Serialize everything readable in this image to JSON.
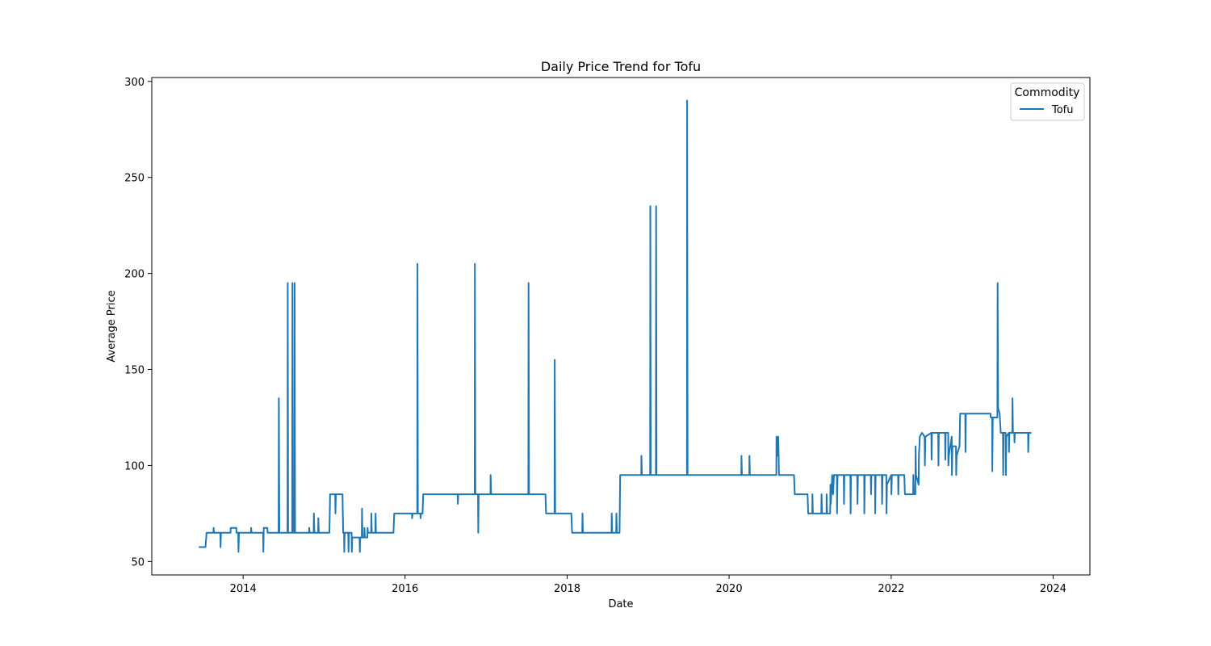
{
  "chart_data": {
    "type": "line",
    "title": "Daily Price Trend for Tofu",
    "xlabel": "Date",
    "ylabel": "Average Price",
    "x_ticks": [
      "2014",
      "2016",
      "2018",
      "2020",
      "2022",
      "2024"
    ],
    "y_ticks": [
      50,
      100,
      150,
      200,
      250,
      300
    ],
    "xlim": [
      "2012-11-15",
      "2024-06-15"
    ],
    "ylim": [
      43,
      302
    ],
    "grid": false,
    "legend": {
      "title": "Commodity",
      "placement": "top-right"
    },
    "series": [
      {
        "name": "Tofu",
        "color": "#1f77b4",
        "points": [
          [
            "2013-06-15",
            57.5
          ],
          [
            "2013-07-15",
            57.5
          ],
          [
            "2013-07-20",
            65
          ],
          [
            "2013-08-20",
            65
          ],
          [
            "2013-08-21",
            67.5
          ],
          [
            "2013-08-23",
            65
          ],
          [
            "2013-09-20",
            65
          ],
          [
            "2013-09-21",
            57.5
          ],
          [
            "2013-09-23",
            65
          ],
          [
            "2013-11-05",
            65
          ],
          [
            "2013-11-06",
            67.5
          ],
          [
            "2013-12-01",
            67.5
          ],
          [
            "2013-12-02",
            65
          ],
          [
            "2013-12-10",
            65
          ],
          [
            "2013-12-11",
            55
          ],
          [
            "2013-12-13",
            65
          ],
          [
            "2014-02-05",
            65
          ],
          [
            "2014-02-06",
            67.5
          ],
          [
            "2014-02-08",
            65
          ],
          [
            "2014-04-01",
            65
          ],
          [
            "2014-04-02",
            55
          ],
          [
            "2014-04-04",
            67.5
          ],
          [
            "2014-04-20",
            67.5
          ],
          [
            "2014-04-21",
            65
          ],
          [
            "2014-06-10",
            65
          ],
          [
            "2014-06-11",
            135
          ],
          [
            "2014-06-13",
            65
          ],
          [
            "2014-07-20",
            65
          ],
          [
            "2014-07-21",
            195
          ],
          [
            "2014-07-23",
            65
          ],
          [
            "2014-08-10",
            65
          ],
          [
            "2014-08-11",
            195
          ],
          [
            "2014-08-13",
            65
          ],
          [
            "2014-08-20",
            65
          ],
          [
            "2014-08-21",
            195
          ],
          [
            "2014-08-23",
            65
          ],
          [
            "2014-10-25",
            65
          ],
          [
            "2014-10-26",
            67.5
          ],
          [
            "2014-10-28",
            65
          ],
          [
            "2014-11-15",
            65
          ],
          [
            "2014-11-16",
            75
          ],
          [
            "2014-11-18",
            65
          ],
          [
            "2014-12-05",
            65
          ],
          [
            "2014-12-06",
            72.5
          ],
          [
            "2014-12-08",
            65
          ],
          [
            "2015-01-25",
            65
          ],
          [
            "2015-01-28",
            85
          ],
          [
            "2015-02-20",
            85
          ],
          [
            "2015-02-21",
            75
          ],
          [
            "2015-02-23",
            85
          ],
          [
            "2015-03-25",
            85
          ],
          [
            "2015-03-28",
            65
          ],
          [
            "2015-04-01",
            65
          ],
          [
            "2015-04-02",
            55
          ],
          [
            "2015-04-04",
            65
          ],
          [
            "2015-04-20",
            65
          ],
          [
            "2015-04-21",
            55
          ],
          [
            "2015-04-23",
            65
          ],
          [
            "2015-05-05",
            65
          ],
          [
            "2015-05-06",
            55
          ],
          [
            "2015-05-08",
            62.5
          ],
          [
            "2015-06-10",
            62.5
          ],
          [
            "2015-06-11",
            55
          ],
          [
            "2015-06-13",
            62.5
          ],
          [
            "2015-06-20",
            62.5
          ],
          [
            "2015-06-21",
            77.5
          ],
          [
            "2015-06-23",
            62.5
          ],
          [
            "2015-07-01",
            62.5
          ],
          [
            "2015-07-02",
            67.5
          ],
          [
            "2015-07-04",
            62.5
          ],
          [
            "2015-07-15",
            62.5
          ],
          [
            "2015-07-16",
            67.5
          ],
          [
            "2015-07-18",
            65
          ],
          [
            "2015-08-01",
            65
          ],
          [
            "2015-08-02",
            75
          ],
          [
            "2015-08-04",
            65
          ],
          [
            "2015-08-20",
            65
          ],
          [
            "2015-08-21",
            75
          ],
          [
            "2015-08-23",
            65
          ],
          [
            "2015-11-10",
            65
          ],
          [
            "2015-11-13",
            75
          ],
          [
            "2016-02-01",
            75
          ],
          [
            "2016-02-02",
            72.5
          ],
          [
            "2016-02-04",
            75
          ],
          [
            "2016-02-25",
            75
          ],
          [
            "2016-02-26",
            205
          ],
          [
            "2016-02-28",
            75
          ],
          [
            "2016-03-10",
            75
          ],
          [
            "2016-03-11",
            72.5
          ],
          [
            "2016-03-13",
            75
          ],
          [
            "2016-03-20",
            75
          ],
          [
            "2016-03-23",
            85
          ],
          [
            "2016-08-25",
            85
          ],
          [
            "2016-08-26",
            80
          ],
          [
            "2016-08-28",
            85
          ],
          [
            "2016-11-10",
            85
          ],
          [
            "2016-11-11",
            205
          ],
          [
            "2016-11-13",
            85
          ],
          [
            "2016-11-25",
            85
          ],
          [
            "2016-11-26",
            65
          ],
          [
            "2016-11-28",
            85
          ],
          [
            "2017-01-20",
            85
          ],
          [
            "2017-01-21",
            95
          ],
          [
            "2017-01-23",
            85
          ],
          [
            "2017-07-10",
            85
          ],
          [
            "2017-07-11",
            195
          ],
          [
            "2017-07-13",
            85
          ],
          [
            "2017-09-25",
            85
          ],
          [
            "2017-09-28",
            75
          ],
          [
            "2017-11-05",
            75
          ],
          [
            "2017-11-06",
            155
          ],
          [
            "2017-11-08",
            75
          ],
          [
            "2018-01-20",
            75
          ],
          [
            "2018-01-23",
            65
          ],
          [
            "2018-03-10",
            65
          ],
          [
            "2018-03-11",
            75
          ],
          [
            "2018-03-13",
            65
          ],
          [
            "2018-07-20",
            65
          ],
          [
            "2018-07-21",
            75
          ],
          [
            "2018-07-23",
            65
          ],
          [
            "2018-08-10",
            65
          ],
          [
            "2018-08-11",
            75
          ],
          [
            "2018-08-13",
            65
          ],
          [
            "2018-08-25",
            65
          ],
          [
            "2018-08-28",
            95
          ],
          [
            "2018-12-01",
            95
          ],
          [
            "2018-12-02",
            105
          ],
          [
            "2018-12-04",
            95
          ],
          [
            "2019-01-10",
            95
          ],
          [
            "2019-01-11",
            235
          ],
          [
            "2019-01-13",
            95
          ],
          [
            "2019-02-05",
            95
          ],
          [
            "2019-02-06",
            235
          ],
          [
            "2019-02-08",
            95
          ],
          [
            "2019-06-25",
            95
          ],
          [
            "2019-06-26",
            290
          ],
          [
            "2019-06-28",
            95
          ],
          [
            "2020-02-25",
            95
          ],
          [
            "2020-02-26",
            105
          ],
          [
            "2020-02-28",
            95
          ],
          [
            "2020-04-01",
            95
          ],
          [
            "2020-04-02",
            105
          ],
          [
            "2020-04-04",
            95
          ],
          [
            "2020-08-01",
            95
          ],
          [
            "2020-08-02",
            115
          ],
          [
            "2020-08-04",
            105
          ],
          [
            "2020-08-10",
            115
          ],
          [
            "2020-08-13",
            95
          ],
          [
            "2020-10-20",
            95
          ],
          [
            "2020-10-23",
            85
          ],
          [
            "2020-12-20",
            85
          ],
          [
            "2020-12-23",
            75
          ],
          [
            "2021-01-10",
            75
          ],
          [
            "2021-01-11",
            85
          ],
          [
            "2021-01-13",
            75
          ],
          [
            "2021-02-20",
            75
          ],
          [
            "2021-02-21",
            85
          ],
          [
            "2021-02-23",
            75
          ],
          [
            "2021-03-15",
            75
          ],
          [
            "2021-03-16",
            85
          ],
          [
            "2021-03-18",
            75
          ],
          [
            "2021-04-01",
            75
          ],
          [
            "2021-04-02",
            90
          ],
          [
            "2021-04-04",
            80
          ],
          [
            "2021-04-10",
            95
          ],
          [
            "2021-04-14",
            85
          ],
          [
            "2021-04-18",
            95
          ],
          [
            "2021-05-01",
            95
          ],
          [
            "2021-05-02",
            75
          ],
          [
            "2021-05-04",
            95
          ],
          [
            "2021-06-01",
            95
          ],
          [
            "2021-06-02",
            80
          ],
          [
            "2021-06-04",
            95
          ],
          [
            "2021-07-01",
            95
          ],
          [
            "2021-07-02",
            75
          ],
          [
            "2021-07-04",
            95
          ],
          [
            "2021-08-01",
            95
          ],
          [
            "2021-08-02",
            80
          ],
          [
            "2021-08-04",
            95
          ],
          [
            "2021-09-01",
            95
          ],
          [
            "2021-09-02",
            75
          ],
          [
            "2021-09-04",
            95
          ],
          [
            "2021-10-01",
            95
          ],
          [
            "2021-10-02",
            85
          ],
          [
            "2021-10-04",
            95
          ],
          [
            "2021-10-20",
            95
          ],
          [
            "2021-10-21",
            75
          ],
          [
            "2021-10-23",
            95
          ],
          [
            "2021-11-20",
            95
          ],
          [
            "2021-11-21",
            80
          ],
          [
            "2021-11-23",
            95
          ],
          [
            "2021-12-10",
            95
          ],
          [
            "2021-12-11",
            75
          ],
          [
            "2021-12-13",
            90
          ],
          [
            "2022-01-01",
            95
          ],
          [
            "2022-01-02",
            85
          ],
          [
            "2022-01-04",
            95
          ],
          [
            "2022-02-01",
            95
          ],
          [
            "2022-02-02",
            85
          ],
          [
            "2022-02-04",
            95
          ],
          [
            "2022-03-01",
            95
          ],
          [
            "2022-03-04",
            85
          ],
          [
            "2022-04-10",
            85
          ],
          [
            "2022-04-11",
            95
          ],
          [
            "2022-04-13",
            85
          ],
          [
            "2022-04-20",
            85
          ],
          [
            "2022-04-21",
            110
          ],
          [
            "2022-04-23",
            95
          ],
          [
            "2022-05-05",
            90
          ],
          [
            "2022-05-06",
            105
          ],
          [
            "2022-05-10",
            115
          ],
          [
            "2022-05-20",
            117
          ],
          [
            "2022-06-01",
            115
          ],
          [
            "2022-06-02",
            100
          ],
          [
            "2022-06-04",
            115
          ],
          [
            "2022-07-01",
            117
          ],
          [
            "2022-07-02",
            103
          ],
          [
            "2022-07-04",
            117
          ],
          [
            "2022-08-01",
            117
          ],
          [
            "2022-08-02",
            100
          ],
          [
            "2022-08-04",
            117
          ],
          [
            "2022-09-01",
            117
          ],
          [
            "2022-09-02",
            103
          ],
          [
            "2022-09-04",
            117
          ],
          [
            "2022-09-15",
            117
          ],
          [
            "2022-09-16",
            100
          ],
          [
            "2022-09-18",
            105
          ],
          [
            "2022-10-01",
            115
          ],
          [
            "2022-10-02",
            95
          ],
          [
            "2022-10-04",
            110
          ],
          [
            "2022-10-20",
            110
          ],
          [
            "2022-10-21",
            95
          ],
          [
            "2022-10-23",
            105
          ],
          [
            "2022-11-05",
            110
          ],
          [
            "2022-11-08",
            127
          ],
          [
            "2022-12-01",
            127
          ],
          [
            "2022-12-02",
            107
          ],
          [
            "2022-12-04",
            127
          ],
          [
            "2023-03-25",
            127
          ],
          [
            "2023-03-26",
            125
          ],
          [
            "2023-04-01",
            125
          ],
          [
            "2023-04-02",
            97
          ],
          [
            "2023-04-04",
            125
          ],
          [
            "2023-04-25",
            125
          ],
          [
            "2023-04-26",
            195
          ],
          [
            "2023-04-28",
            130
          ],
          [
            "2023-05-05",
            127
          ],
          [
            "2023-05-10",
            117
          ],
          [
            "2023-05-20",
            117
          ],
          [
            "2023-05-21",
            95
          ],
          [
            "2023-05-23",
            117
          ],
          [
            "2023-06-01",
            117
          ],
          [
            "2023-06-02",
            95
          ],
          [
            "2023-06-04",
            115
          ],
          [
            "2023-06-15",
            117
          ],
          [
            "2023-06-16",
            107
          ],
          [
            "2023-06-18",
            117
          ],
          [
            "2023-07-01",
            117
          ],
          [
            "2023-07-02",
            135
          ],
          [
            "2023-07-04",
            117
          ],
          [
            "2023-07-10",
            117
          ],
          [
            "2023-07-11",
            112
          ],
          [
            "2023-07-13",
            117
          ],
          [
            "2023-09-10",
            117
          ],
          [
            "2023-09-11",
            107
          ],
          [
            "2023-09-13",
            117
          ],
          [
            "2023-09-25",
            117
          ]
        ]
      }
    ]
  }
}
